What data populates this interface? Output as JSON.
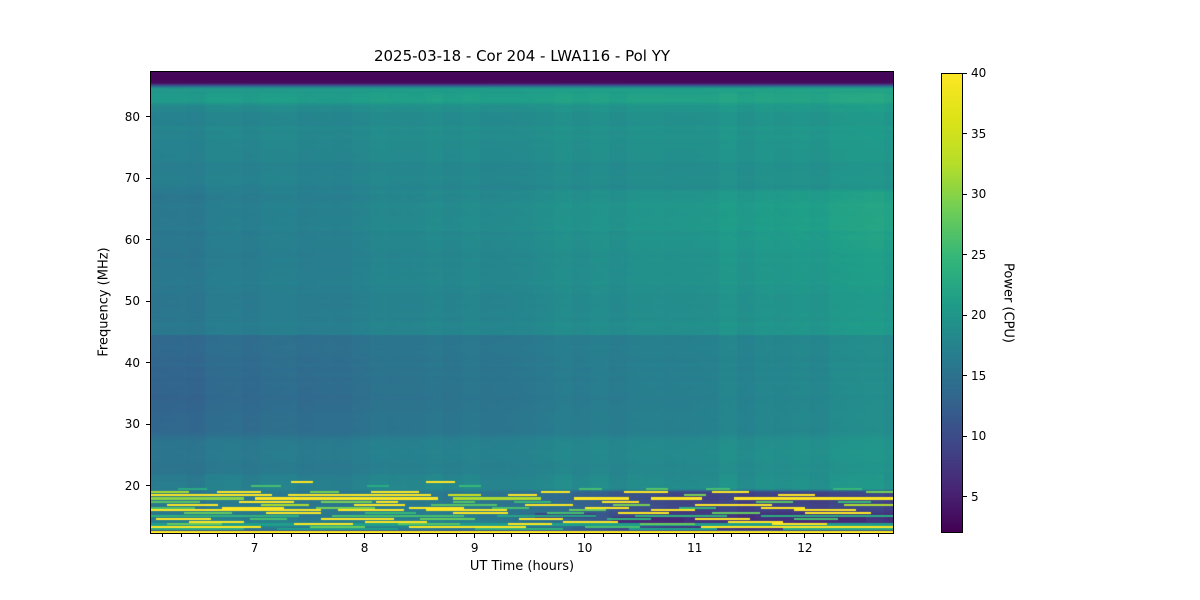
{
  "title": "2025-03-18 - Cor 204 - LWA116 - Pol YY",
  "axes": {
    "xlabel": "UT Time (hours)",
    "ylabel": "Frequency (MHz)",
    "xlim": [
      6.05,
      12.81
    ],
    "ylim": [
      12.2,
      87.4
    ],
    "xticks": [
      7,
      8,
      9,
      10,
      11,
      12
    ],
    "yticks": [
      20,
      30,
      40,
      50,
      60,
      70,
      80
    ],
    "x_minor_interval_hours": 0.1666667
  },
  "colorbar": {
    "label": "Power (CPU)",
    "vmin": 2,
    "vmax": 40,
    "ticks": [
      5,
      10,
      15,
      20,
      25,
      30,
      35,
      40
    ]
  },
  "chart_data": {
    "type": "heatmap",
    "title": "2025-03-18 - Cor 204 - LWA116 - Pol YY",
    "xlabel": "UT Time (hours)",
    "ylabel": "Frequency (MHz)",
    "zlabel": "Power (CPU)",
    "x_range_hours": [
      6.05,
      12.81
    ],
    "y_range_mhz": [
      12.2,
      87.4
    ],
    "z_range": [
      2,
      40
    ],
    "colormap": "viridis",
    "viridis_stops": [
      "#440154",
      "#482878",
      "#3e4a89",
      "#31688e",
      "#26828e",
      "#1f9e89",
      "#35b779",
      "#6ece58",
      "#b5de2b",
      "#dde318",
      "#fde725"
    ],
    "features_summary": [
      "dark purple low-power band above ~85.6 MHz (power ~2.5)",
      "bright teal band at 82.4-84.4 MHz (~20-22)",
      "smooth blue-teal body brightening toward later UT (16 left to ~22 right)",
      "darker indigo band 28-44.6 MHz, strongest early (~13)",
      "dense shortwave RFI stripes below ~19.3 MHz, many saturated at 40",
      "background below 19 MHz turns dark purple after ~10 UT",
      "solid saturated yellow stripe at ~12.5 MHz across all times"
    ],
    "background_model": {
      "r_norm": [
        6.05,
        6.76
      ],
      "top_purple": {
        "f_min": 85.6,
        "fade_range": [
          84.4,
          85.6
        ],
        "value": 2.6
      },
      "teal_band": {
        "f_range": [
          82.4,
          84.4
        ],
        "v0": 20.3,
        "vr": 1.7
      },
      "upper_body": {
        "f_range": [
          68,
          82.4
        ],
        "v0": 16.6,
        "vr": 2.9,
        "f_slope": 1.1
      },
      "mid_body": {
        "f_range": [
          44.6,
          68
        ],
        "v0": 15.7,
        "vr": 4.7,
        "bump": {
          "c": 64,
          "s": 9,
          "a": 1.4
        }
      },
      "dark_band": {
        "f_range": [
          28,
          44.6
        ],
        "v0": 13.6,
        "vr": 5.0,
        "dip": {
          "c": 35,
          "s": 5,
          "a": 0.7
        }
      },
      "low_body": {
        "f_range": [
          22,
          28
        ],
        "v0": 15.3,
        "vr": 4.3
      },
      "green_zone": {
        "f_range": [
          19.3,
          22
        ],
        "v0": 16.5,
        "vr": 3.3
      },
      "rfi_zone": {
        "f_range": [
          12.9,
          19.3
        ],
        "v_left": 15.8,
        "right_drop": 6.8,
        "low_extra_drop": 1.8,
        "low_f": 16.5,
        "ridge": {
          "c": 14.0,
          "s": 1.0,
          "a": 1.6
        },
        "dark_onset": [
          9.0,
          11.2
        ]
      },
      "col_jitter": 1.4,
      "row_jitter": 1.0
    },
    "patches": [
      {
        "t": [
          10.25,
          10.9
        ],
        "f": [
          14.1,
          15.0
        ],
        "v": 6
      },
      {
        "t": [
          11.0,
          11.7
        ],
        "f": [
          13.8,
          14.6
        ],
        "v": 7
      },
      {
        "t": [
          11.9,
          12.55
        ],
        "f": [
          14.3,
          15.2
        ],
        "v": 6
      },
      {
        "t": [
          10.6,
          11.3
        ],
        "f": [
          15.3,
          15.95
        ],
        "v": 8
      },
      {
        "t": [
          12.0,
          12.81
        ],
        "f": [
          12.95,
          13.6
        ],
        "v": 8
      },
      {
        "t": [
          9.55,
          10.1
        ],
        "f": [
          14.8,
          15.6
        ],
        "v": 9
      }
    ],
    "rfi_stripes": [
      {
        "f": 20.68,
        "h": 0.3,
        "seg": [
          [
            7.33,
            7.53,
            40
          ],
          [
            8.56,
            8.82,
            40
          ]
        ]
      },
      {
        "f": 20.05,
        "h": 0.3,
        "seg": [
          [
            6.97,
            7.24,
            26
          ],
          [
            8.02,
            8.22,
            23
          ],
          [
            8.86,
            9.06,
            25
          ]
        ]
      },
      {
        "f": 19.6,
        "h": 0.28,
        "seg": [
          [
            6.3,
            6.56,
            23
          ],
          [
            9.95,
            10.16,
            26
          ],
          [
            10.56,
            10.76,
            27
          ],
          [
            11.1,
            11.32,
            26
          ],
          [
            12.26,
            12.52,
            25
          ]
        ]
      },
      {
        "f": 18.95,
        "h": 0.34,
        "seg": [
          [
            6.05,
            6.4,
            32
          ],
          [
            6.66,
            7.06,
            40
          ],
          [
            7.5,
            7.76,
            29
          ],
          [
            8.06,
            8.5,
            40
          ],
          [
            9.6,
            9.86,
            40
          ],
          [
            10.36,
            10.76,
            40
          ],
          [
            11.16,
            11.5,
            40
          ],
          [
            12.56,
            12.81,
            29
          ]
        ]
      },
      {
        "f": 18.45,
        "h": 0.34,
        "seg": [
          [
            6.05,
            7.16,
            40
          ],
          [
            7.3,
            8.6,
            40
          ],
          [
            8.76,
            9.06,
            35
          ],
          [
            9.3,
            9.56,
            40
          ],
          [
            10.9,
            11.1,
            29
          ],
          [
            11.76,
            12.1,
            40
          ]
        ]
      },
      {
        "f": 17.95,
        "h": 0.45,
        "seg": [
          [
            6.05,
            6.9,
            30
          ],
          [
            7.0,
            8.66,
            40
          ],
          [
            8.8,
            9.6,
            32
          ],
          [
            9.9,
            10.4,
            40
          ],
          [
            10.6,
            11.06,
            40
          ],
          [
            11.36,
            12.81,
            40
          ]
        ]
      },
      {
        "f": 17.45,
        "h": 0.3,
        "seg": [
          [
            6.05,
            6.5,
            27
          ],
          [
            6.86,
            7.36,
            40
          ],
          [
            7.6,
            8.06,
            29
          ],
          [
            8.1,
            8.3,
            40
          ],
          [
            8.8,
            9.0,
            27
          ],
          [
            9.36,
            9.7,
            25
          ],
          [
            10.16,
            10.5,
            40
          ],
          [
            11.56,
            11.9,
            27
          ],
          [
            12.3,
            12.6,
            25
          ]
        ]
      },
      {
        "f": 16.95,
        "h": 0.34,
        "seg": [
          [
            6.2,
            6.66,
            40
          ],
          [
            7.06,
            7.5,
            32
          ],
          [
            7.9,
            8.36,
            40
          ],
          [
            8.6,
            9.2,
            27
          ],
          [
            9.46,
            9.9,
            40
          ],
          [
            10.26,
            10.6,
            29
          ],
          [
            11.0,
            11.7,
            40
          ],
          [
            12.36,
            12.81,
            32
          ]
        ]
      },
      {
        "f": 16.45,
        "h": 0.3,
        "seg": [
          [
            6.05,
            6.46,
            26
          ],
          [
            6.7,
            7.26,
            40
          ],
          [
            7.56,
            8.1,
            29
          ],
          [
            8.4,
            8.9,
            40
          ],
          [
            9.16,
            9.5,
            26
          ],
          [
            10.0,
            10.4,
            40
          ],
          [
            10.86,
            11.2,
            24
          ],
          [
            11.6,
            12.0,
            40
          ]
        ]
      },
      {
        "f": 16.0,
        "h": 0.36,
        "seg": [
          [
            6.05,
            7.6,
            40
          ],
          [
            7.76,
            8.36,
            40
          ],
          [
            8.56,
            9.3,
            40
          ],
          [
            9.86,
            10.2,
            28
          ],
          [
            10.6,
            11.0,
            40
          ],
          [
            11.9,
            12.46,
            40
          ]
        ]
      },
      {
        "f": 15.55,
        "h": 0.3,
        "seg": [
          [
            6.36,
            6.8,
            28
          ],
          [
            7.1,
            7.6,
            40
          ],
          [
            8.0,
            8.46,
            25
          ],
          [
            8.8,
            9.3,
            40
          ],
          [
            9.66,
            10.0,
            26
          ],
          [
            10.3,
            10.76,
            40
          ],
          [
            11.16,
            11.6,
            28
          ],
          [
            12.0,
            12.6,
            40
          ]
        ]
      },
      {
        "f": 15.1,
        "h": 0.32,
        "seg": [
          [
            6.05,
            7.4,
            24
          ],
          [
            7.7,
            8.9,
            26
          ],
          [
            9.2,
            10.1,
            22
          ],
          [
            10.46,
            11.3,
            24
          ],
          [
            11.6,
            12.81,
            23
          ]
        ]
      },
      {
        "f": 14.65,
        "h": 0.3,
        "seg": [
          [
            6.1,
            6.6,
            40
          ],
          [
            6.96,
            7.3,
            26
          ],
          [
            7.6,
            8.26,
            40
          ],
          [
            8.5,
            9.0,
            28
          ],
          [
            9.4,
            9.8,
            40
          ],
          [
            10.2,
            10.6,
            24
          ],
          [
            11.0,
            11.5,
            40
          ],
          [
            11.9,
            12.3,
            26
          ]
        ]
      },
      {
        "f": 14.2,
        "h": 0.3,
        "seg": [
          [
            6.4,
            6.9,
            40
          ],
          [
            8.0,
            8.56,
            40
          ],
          [
            9.8,
            10.3,
            40
          ],
          [
            11.3,
            11.8,
            40
          ]
        ]
      },
      {
        "f": 13.8,
        "h": 0.5,
        "seg": [
          [
            6.05,
            12.81,
            21
          ]
        ]
      },
      {
        "f": 13.8,
        "h": 0.3,
        "seg": [
          [
            6.2,
            6.7,
            28
          ],
          [
            7.36,
            7.9,
            40
          ],
          [
            8.3,
            8.86,
            27
          ],
          [
            9.3,
            9.7,
            40
          ],
          [
            10.5,
            11.0,
            28
          ],
          [
            11.7,
            12.2,
            40
          ]
        ]
      },
      {
        "f": 13.35,
        "h": 0.3,
        "seg": [
          [
            6.05,
            7.06,
            40
          ],
          [
            7.5,
            8.0,
            28
          ],
          [
            8.4,
            9.46,
            40
          ],
          [
            10.0,
            10.5,
            26
          ],
          [
            11.06,
            12.81,
            40
          ]
        ]
      },
      {
        "f": 12.95,
        "h": 0.32,
        "seg": [
          [
            6.05,
            6.9,
            23
          ],
          [
            7.2,
            8.3,
            21
          ],
          [
            9.0,
            9.8,
            24
          ],
          [
            10.4,
            11.2,
            21
          ],
          [
            11.8,
            12.81,
            23
          ]
        ]
      },
      {
        "f": 12.5,
        "h": 0.5,
        "seg": [
          [
            6.05,
            12.81,
            40
          ]
        ]
      }
    ]
  }
}
